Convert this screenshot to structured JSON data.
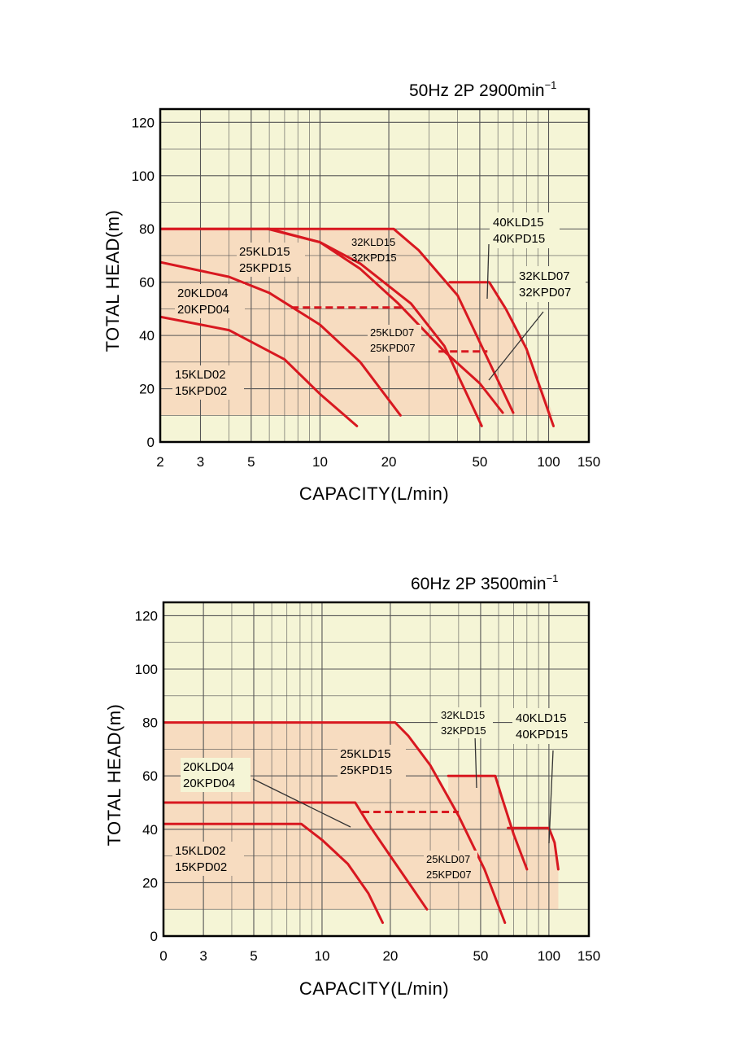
{
  "charts": [
    {
      "title": "50Hz 2P 2900min",
      "title_sup": "−1",
      "xlabel": "CAPACITY(L/min)",
      "ylabel": "TOTAL HEAD(m)",
      "xtick_labels": [
        "2",
        "3",
        "5",
        "10",
        "20",
        "50",
        "100",
        "150"
      ],
      "ytick_labels": [
        "0",
        "20",
        "40",
        "60",
        "80",
        "100",
        "120"
      ],
      "labels": [
        {
          "l1": "40KLD15",
          "l2": "40KPD15",
          "big": true
        },
        {
          "l1": "32KLD15",
          "l2": "32KPD15",
          "big": false
        },
        {
          "l1": "25KLD15",
          "l2": "25KPD15",
          "big": true
        },
        {
          "l1": "32KLD07",
          "l2": "32KPD07",
          "big": true
        },
        {
          "l1": "20KLD04",
          "l2": "20KPD04",
          "big": true
        },
        {
          "l1": "25KLD07",
          "l2": "25KPD07",
          "big": false
        },
        {
          "l1": "15KLD02",
          "l2": "15KPD02",
          "big": true
        }
      ]
    },
    {
      "title": "60Hz 2P 3500min",
      "title_sup": "−1",
      "xlabel": "CAPACITY(L/min)",
      "ylabel": "TOTAL HEAD(m)",
      "xtick_labels": [
        "0",
        "3",
        "5",
        "10",
        "20",
        "50",
        "100",
        "150"
      ],
      "ytick_labels": [
        "0",
        "20",
        "40",
        "60",
        "80",
        "100",
        "120"
      ],
      "labels": [
        {
          "l1": "32KLD15",
          "l2": "32KPD15",
          "big": false
        },
        {
          "l1": "40KLD15",
          "l2": "40KPD15",
          "big": true
        },
        {
          "l1": "25KLD15",
          "l2": "25KPD15",
          "big": true
        },
        {
          "l1": "20KLD04",
          "l2": "20KPD04",
          "big": true
        },
        {
          "l1": "25KLD07",
          "l2": "25KPD07",
          "big": false
        },
        {
          "l1": "15KLD02",
          "l2": "15KPD02",
          "big": true
        }
      ]
    }
  ],
  "chart_data": [
    {
      "type": "line",
      "title": "50Hz 2P 2900min−1",
      "xlabel": "CAPACITY(L/min)",
      "ylabel": "TOTAL HEAD(m)",
      "xscale": "log",
      "xlim": [
        2,
        150
      ],
      "ylim": [
        0,
        125
      ],
      "xticks": [
        2,
        3,
        5,
        10,
        20,
        50,
        100,
        150
      ],
      "yticks": [
        0,
        20,
        40,
        60,
        80,
        100,
        120
      ],
      "series": [
        {
          "name": "15KLD02 / 15KPD02",
          "x": [
            2,
            4,
            7,
            10,
            14.5
          ],
          "y": [
            47,
            42,
            31,
            18,
            6
          ]
        },
        {
          "name": "20KLD04 / 20KPD04",
          "x": [
            2,
            4,
            6,
            10,
            15,
            22.5
          ],
          "y": [
            67.5,
            62,
            56,
            44,
            30,
            10
          ]
        },
        {
          "name": "25KLD15 / 25KPD15",
          "x": [
            2,
            6,
            10,
            15,
            25,
            35,
            51
          ],
          "y": [
            80,
            80,
            75,
            67,
            52,
            36,
            6
          ]
        },
        {
          "name": "25KLD07 / 25KPD07",
          "x": [
            5.9,
            10,
            15,
            22,
            35,
            50,
            63
          ],
          "y": [
            80,
            75,
            65,
            52,
            34,
            22,
            11
          ]
        },
        {
          "name": "32KLD15 / 32KPD15",
          "x": [
            2,
            21,
            27,
            40,
            70
          ],
          "y": [
            80,
            80,
            72,
            55,
            11
          ]
        },
        {
          "name": "40KLD15 / 40KPD15",
          "x": [
            37,
            55,
            65,
            80,
            105
          ],
          "y": [
            60,
            60,
            50,
            35,
            6
          ]
        },
        {
          "name": "Dashed reference 1",
          "x": [
            7.5,
            23
          ],
          "y": [
            50.5,
            50.5
          ],
          "dashed": true
        },
        {
          "name": "Dashed reference 2",
          "x": [
            33,
            54
          ],
          "y": [
            34,
            34
          ],
          "dashed": true
        }
      ]
    },
    {
      "type": "line",
      "title": "60Hz 2P 3500min−1",
      "xlabel": "CAPACITY(L/min)",
      "ylabel": "TOTAL HEAD(m)",
      "xscale": "log",
      "xlim": [
        2,
        150
      ],
      "ylim": [
        0,
        125
      ],
      "xtick_labels": [
        "0",
        "3",
        "5",
        "10",
        "20",
        "50",
        "100",
        "150"
      ],
      "yticks": [
        0,
        20,
        40,
        60,
        80,
        100,
        120
      ],
      "series": [
        {
          "name": "15KLD02 / 15KPD02",
          "x": [
            2,
            8.1,
            10,
            13,
            16,
            18.5
          ],
          "y": [
            42,
            42,
            36,
            27,
            16,
            5
          ]
        },
        {
          "name": "20KLD04 / 20KPD04",
          "x": [
            2,
            14,
            16,
            20,
            25,
            29
          ],
          "y": [
            50,
            50,
            42,
            30,
            18,
            10
          ]
        },
        {
          "name": "25KLD15 / 25KPD15",
          "x": [
            2,
            21,
            24,
            30,
            40,
            52,
            64
          ],
          "y": [
            80,
            80,
            75,
            64,
            45,
            25,
            5
          ]
        },
        {
          "name": "32KLD15 / 32KPD15",
          "x": [
            36,
            58,
            62,
            70,
            80
          ],
          "y": [
            60,
            60,
            52,
            38,
            25
          ]
        },
        {
          "name": "40KLD15 / 40KPD15",
          "x": [
            66,
            100,
            106,
            110
          ],
          "y": [
            40.5,
            40.5,
            35,
            25
          ]
        },
        {
          "name": "Dashed reference",
          "x": [
            15,
            40
          ],
          "y": [
            46.5,
            46.5
          ],
          "dashed": true
        }
      ]
    }
  ]
}
